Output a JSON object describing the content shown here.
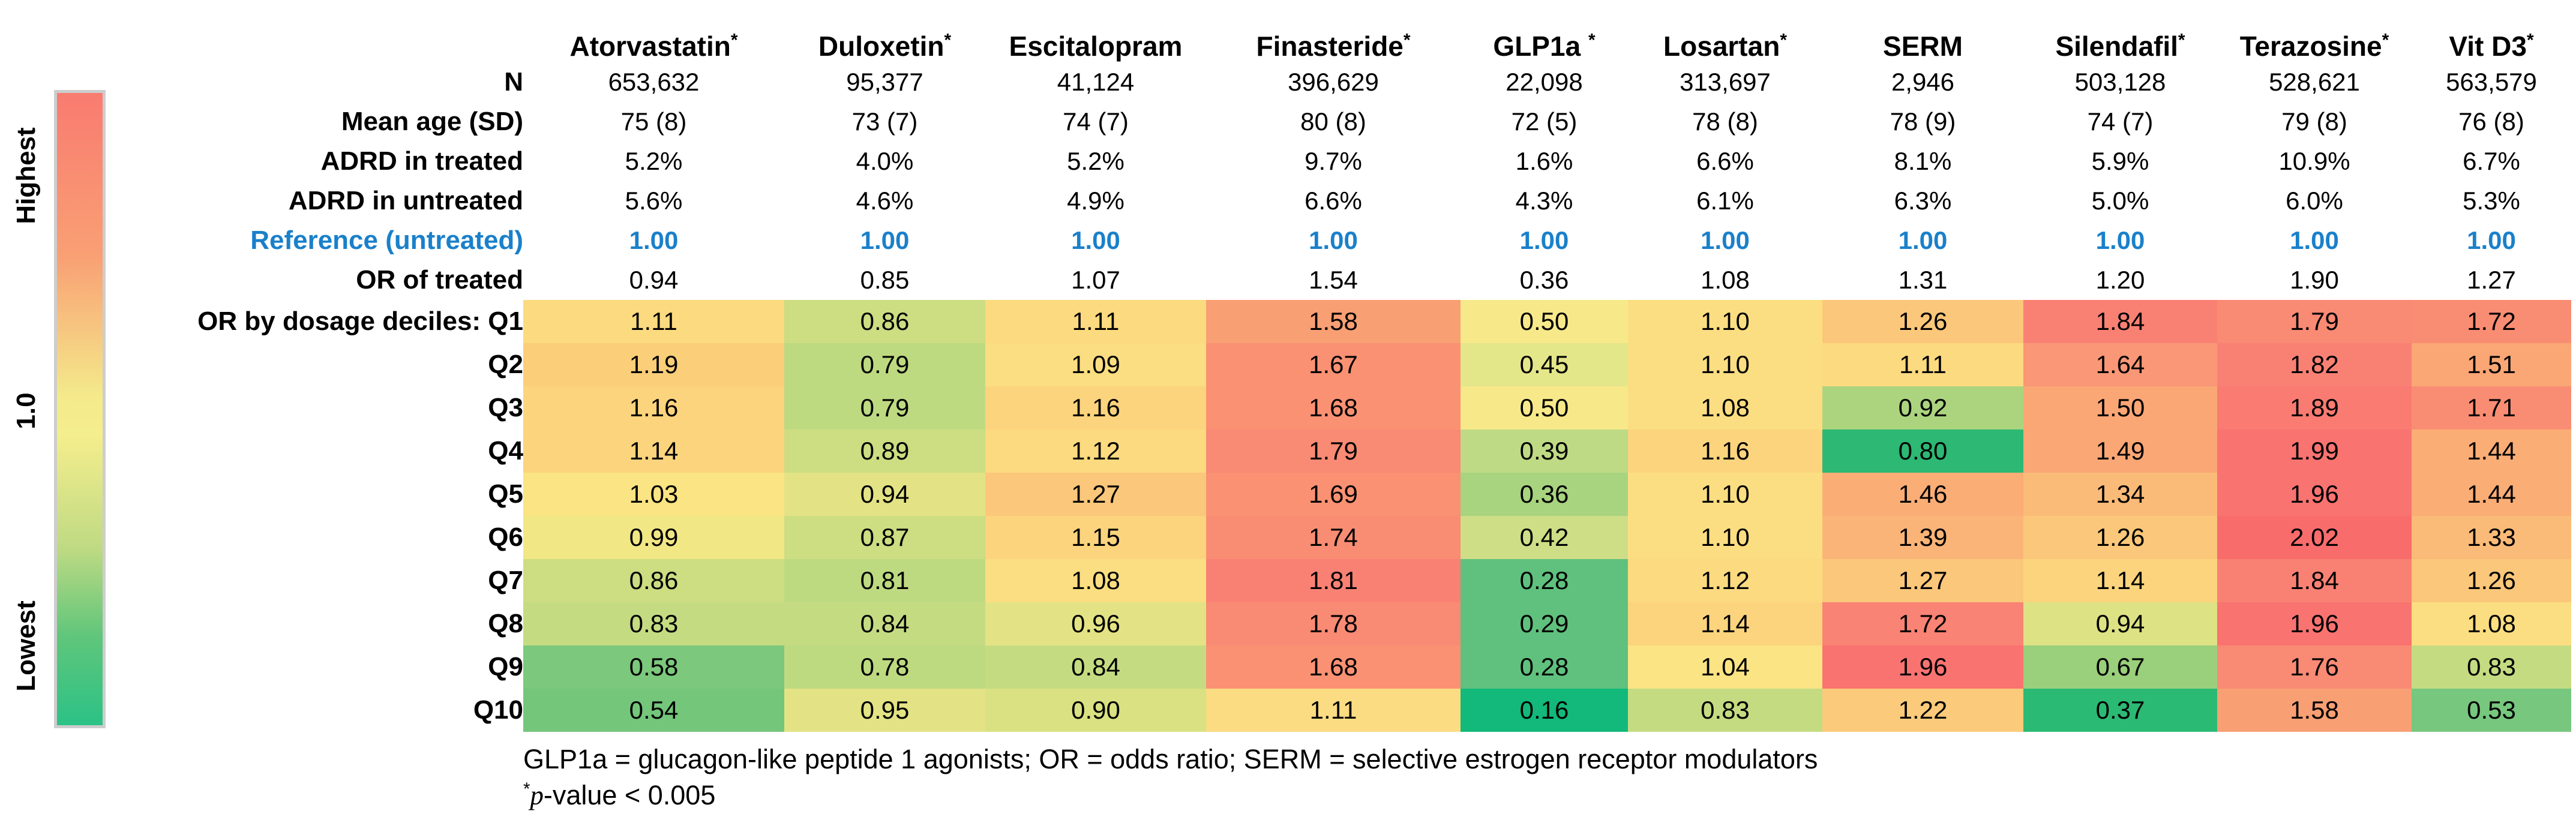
{
  "legend": {
    "top_label": "Highest",
    "mid_label": "1.0",
    "bottom_label": "Lowest",
    "gradient_stops": [
      "#F97B70 0%",
      "#F9A074 26%",
      "#F4EA8B 48%",
      "#F5EE8D 54%",
      "#BFDA83 72%",
      "#5FC67B 86%",
      "#2CC286 100%"
    ],
    "frame_color": "#CDCDCD"
  },
  "accent_colors": {
    "reference_blue": "#1A80CA",
    "text_black": "#000000"
  },
  "chart_data": {
    "type": "heatmap",
    "title": "",
    "columns": [
      {
        "label": "Atorvastatin",
        "star": "*"
      },
      {
        "label": "Duloxetin",
        "star": "*"
      },
      {
        "label": "Escitalopram",
        "star": ""
      },
      {
        "label": "Finasteride",
        "star": "*"
      },
      {
        "label": "GLP1a ",
        "star": "*"
      },
      {
        "label": "Losartan",
        "star": "*"
      },
      {
        "label": "SERM",
        "star": ""
      },
      {
        "label": "Silendafil",
        "star": "*"
      },
      {
        "label": "Terazosine",
        "star": "*"
      },
      {
        "label": "Vit D3",
        "star": "*"
      }
    ],
    "stat_rows": [
      {
        "label": "N",
        "values": [
          "653,632",
          "95,377",
          "41,124",
          "396,629",
          "22,098",
          "313,697",
          "2,946",
          "503,128",
          "528,621",
          "563,579"
        ],
        "highlight": ""
      },
      {
        "label": "Mean age (SD)",
        "values": [
          "75 (8)",
          "73 (7)",
          "74 (7)",
          "80 (8)",
          "72 (5)",
          "78 (8)",
          "78 (9)",
          "74 (7)",
          "79 (8)",
          "76 (8)"
        ],
        "highlight": ""
      },
      {
        "label": "ADRD in treated",
        "values": [
          "5.2%",
          "4.0%",
          "5.2%",
          "9.7%",
          "1.6%",
          "6.6%",
          "8.1%",
          "5.9%",
          "10.9%",
          "6.7%"
        ],
        "highlight": ""
      },
      {
        "label": "ADRD in untreated",
        "values": [
          "5.6%",
          "4.6%",
          "4.9%",
          "6.6%",
          "4.3%",
          "6.1%",
          "6.3%",
          "5.0%",
          "6.0%",
          "5.3%"
        ],
        "highlight": ""
      },
      {
        "label": "Reference (untreated)",
        "values": [
          "1.00",
          "1.00",
          "1.00",
          "1.00",
          "1.00",
          "1.00",
          "1.00",
          "1.00",
          "1.00",
          "1.00"
        ],
        "highlight": "blue"
      },
      {
        "label": "OR of treated",
        "values": [
          "0.94",
          "0.85",
          "1.07",
          "1.54",
          "0.36",
          "1.08",
          "1.31",
          "1.20",
          "1.90",
          "1.27"
        ],
        "highlight": ""
      }
    ],
    "decile_rows": [
      {
        "label": "OR by dosage deciles: Q1",
        "values": [
          "1.11",
          "0.86",
          "1.11",
          "1.58",
          "0.50",
          "1.10",
          "1.26",
          "1.84",
          "1.79",
          "1.72"
        ],
        "colors": [
          "#FCDA7F",
          "#CCDD82",
          "#FCDA7F",
          "#F99F74",
          "#F7E98A",
          "#FBDE81",
          "#FBC77A",
          "#F98174",
          "#F98A74",
          "#F98D73"
        ]
      },
      {
        "label": "Q2",
        "values": [
          "1.19",
          "0.79",
          "1.09",
          "1.67",
          "0.45",
          "1.10",
          "1.11",
          "1.64",
          "1.82",
          "1.51"
        ],
        "colors": [
          "#FBCE79",
          "#BEDA81",
          "#FBDE81",
          "#FA9173",
          "#E4E68A",
          "#FBDE81",
          "#FCDA7F",
          "#FA9776",
          "#F98174",
          "#FAA775"
        ]
      },
      {
        "label": "Q3",
        "values": [
          "1.16",
          "0.79",
          "1.16",
          "1.68",
          "0.50",
          "1.08",
          "0.92",
          "1.50",
          "1.89",
          "1.71"
        ],
        "colors": [
          "#FBD47D",
          "#BEDA81",
          "#FBD47D",
          "#FA9173",
          "#F7E98A",
          "#FBDE81",
          "#ACD47F",
          "#FAA775",
          "#F97B71",
          "#F98D73"
        ]
      },
      {
        "label": "Q4",
        "values": [
          "1.14",
          "0.89",
          "1.12",
          "1.79",
          "0.39",
          "1.16",
          "0.80",
          "1.49",
          "1.99",
          "1.44"
        ],
        "colors": [
          "#FBD47D",
          "#CCDD82",
          "#FCDA7F",
          "#F98A74",
          "#BFDA84",
          "#FBD47D",
          "#2DB873",
          "#FAA775",
          "#F97370",
          "#FBAD76"
        ]
      },
      {
        "label": "Q5",
        "values": [
          "1.03",
          "0.94",
          "1.27",
          "1.69",
          "0.36",
          "1.10",
          "1.46",
          "1.34",
          "1.96",
          "1.44"
        ],
        "colors": [
          "#FBE483",
          "#E3E385",
          "#FBC77A",
          "#FA9173",
          "#A8D37F",
          "#FBDE81",
          "#FBAD76",
          "#FBBB78",
          "#F97370",
          "#FBAD76"
        ]
      },
      {
        "label": "Q6",
        "values": [
          "0.99",
          "0.87",
          "1.15",
          "1.74",
          "0.42",
          "1.10",
          "1.39",
          "1.26",
          "2.02",
          "1.33"
        ],
        "colors": [
          "#F2E785",
          "#CCDD82",
          "#FBD47D",
          "#F98D73",
          "#CEDE86",
          "#FBDE81",
          "#FBB477",
          "#FBC77A",
          "#F96C6C",
          "#FBBB78"
        ]
      },
      {
        "label": "Q7",
        "values": [
          "0.86",
          "0.81",
          "1.08",
          "1.81",
          "0.28",
          "1.12",
          "1.27",
          "1.14",
          "1.84",
          "1.26"
        ],
        "colors": [
          "#CCDD82",
          "#BEDA81",
          "#FBDE81",
          "#F98174",
          "#5FC17D",
          "#FCDA7F",
          "#FBC77A",
          "#FBD47D",
          "#F98174",
          "#FBC77A"
        ]
      },
      {
        "label": "Q8",
        "values": [
          "0.83",
          "0.84",
          "0.96",
          "1.78",
          "0.29",
          "1.14",
          "1.72",
          "0.94",
          "1.96",
          "1.08"
        ],
        "colors": [
          "#C5DB82",
          "#C5DB82",
          "#E3E385",
          "#F98A74",
          "#5FC17D",
          "#FBD47D",
          "#F98374",
          "#DDE284",
          "#F97370",
          "#FBDE81"
        ]
      },
      {
        "label": "Q9",
        "values": [
          "0.58",
          "0.78",
          "0.84",
          "1.68",
          "0.28",
          "1.04",
          "1.96",
          "0.67",
          "1.76",
          "0.83"
        ],
        "colors": [
          "#7CC87C",
          "#BEDA81",
          "#C5DB82",
          "#FA9173",
          "#5FC17D",
          "#FBE483",
          "#F97370",
          "#9ACF7B",
          "#F98A74",
          "#C5DB82"
        ]
      },
      {
        "label": "Q10",
        "values": [
          "0.54",
          "0.95",
          "0.90",
          "1.11",
          "0.16",
          "0.83",
          "1.22",
          "0.37",
          "1.58",
          "0.53"
        ],
        "colors": [
          "#74C67B",
          "#E3E385",
          "#D9E182",
          "#FBDC82",
          "#12B97A",
          "#C5DB82",
          "#FBCA7B",
          "#2BBA74",
          "#F99F74",
          "#77C77E"
        ]
      }
    ],
    "legend_labels": [
      "Highest",
      "1.0",
      "Lowest"
    ]
  },
  "footnotes": {
    "line1": "GLP1a = glucagon-like peptide 1 agonists; OR = odds ratio; SERM = selective estrogen receptor modulators",
    "star": "*",
    "p": "p",
    "rest": "-value < 0.005"
  }
}
